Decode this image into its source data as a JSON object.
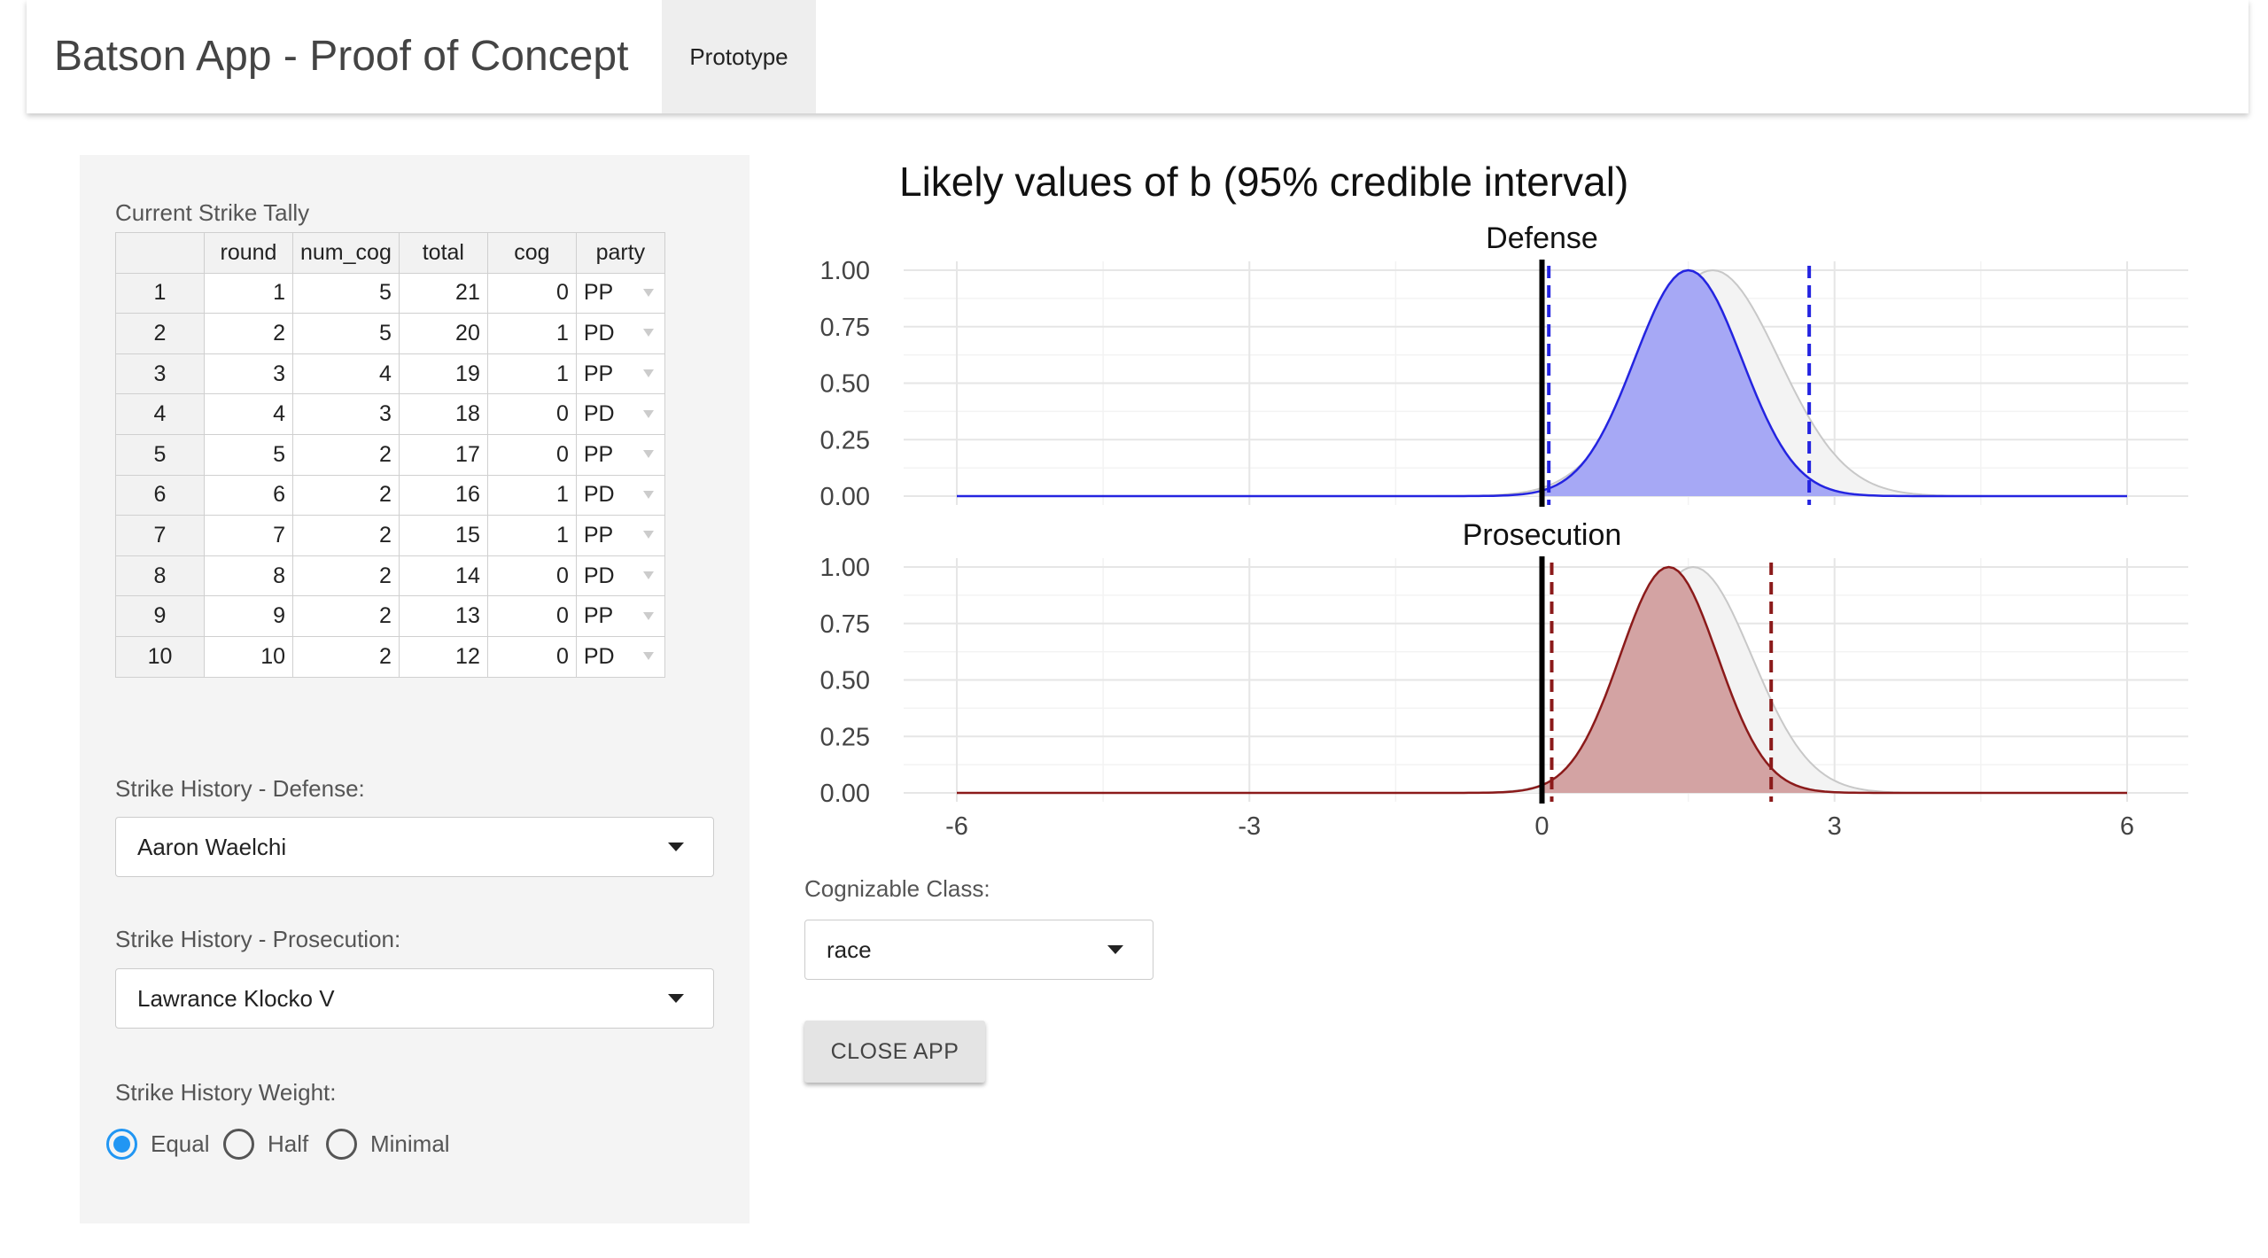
{
  "navbar": {
    "brand": "Batson App - Proof of Concept",
    "tab_label": "Prototype"
  },
  "sidebar": {
    "tally_label": "Current Strike Tally",
    "table": {
      "columns": [
        "round",
        "num_cog",
        "total",
        "cog",
        "party"
      ],
      "rows": [
        {
          "id": "1",
          "round": "1",
          "num_cog": "5",
          "total": "21",
          "cog": "0",
          "party": "PP"
        },
        {
          "id": "2",
          "round": "2",
          "num_cog": "5",
          "total": "20",
          "cog": "1",
          "party": "PD"
        },
        {
          "id": "3",
          "round": "3",
          "num_cog": "4",
          "total": "19",
          "cog": "1",
          "party": "PP"
        },
        {
          "id": "4",
          "round": "4",
          "num_cog": "3",
          "total": "18",
          "cog": "0",
          "party": "PD"
        },
        {
          "id": "5",
          "round": "5",
          "num_cog": "2",
          "total": "17",
          "cog": "0",
          "party": "PP"
        },
        {
          "id": "6",
          "round": "6",
          "num_cog": "2",
          "total": "16",
          "cog": "1",
          "party": "PD"
        },
        {
          "id": "7",
          "round": "7",
          "num_cog": "2",
          "total": "15",
          "cog": "1",
          "party": "PP"
        },
        {
          "id": "8",
          "round": "8",
          "num_cog": "2",
          "total": "14",
          "cog": "0",
          "party": "PD"
        },
        {
          "id": "9",
          "round": "9",
          "num_cog": "2",
          "total": "13",
          "cog": "0",
          "party": "PP"
        },
        {
          "id": "10",
          "round": "10",
          "num_cog": "2",
          "total": "12",
          "cog": "0",
          "party": "PD"
        }
      ]
    },
    "defense_label": "Strike History - Defense:",
    "defense_value": "Aaron Waelchi",
    "prosecution_label": "Strike History - Prosecution:",
    "prosecution_value": "Lawrance Klocko V",
    "weight_label": "Strike History Weight:",
    "weight_options": [
      "Equal",
      "Half",
      "Minimal"
    ],
    "weight_selected": "Equal"
  },
  "main": {
    "cognizable_label": "Cognizable Class:",
    "cognizable_value": "race",
    "close_button": "CLOSE APP"
  },
  "colors": {
    "defense_line": "#2424e0",
    "defense_fill": "#a6a8f5",
    "prosecution_line": "#8b1a1a",
    "prosecution_fill": "#d3a3a3",
    "reference_curve": "#c8c8c8",
    "radio_selected": "#2196f3"
  },
  "chart_data": {
    "type": "area",
    "title": "Likely values of b (95% credible interval)",
    "xlabel": "",
    "ylabel": "",
    "xlim": [
      -6,
      6
    ],
    "ylim": [
      0,
      1
    ],
    "x_ticks": [
      "-6",
      "-3",
      "0",
      "3",
      "6"
    ],
    "y_ticks": [
      "0.00",
      "0.25",
      "0.50",
      "0.75",
      "1.00"
    ],
    "grid": true,
    "reference_line_x": 0,
    "facets": [
      {
        "name": "Defense",
        "mean": 1.5,
        "sd": 0.55,
        "ci": [
          0.07,
          2.74
        ],
        "reference_mean": 1.75,
        "reference_sd": 0.68
      },
      {
        "name": "Prosecution",
        "mean": 1.3,
        "sd": 0.5,
        "ci": [
          0.1,
          2.35
        ],
        "reference_mean": 1.55,
        "reference_sd": 0.6
      }
    ]
  }
}
